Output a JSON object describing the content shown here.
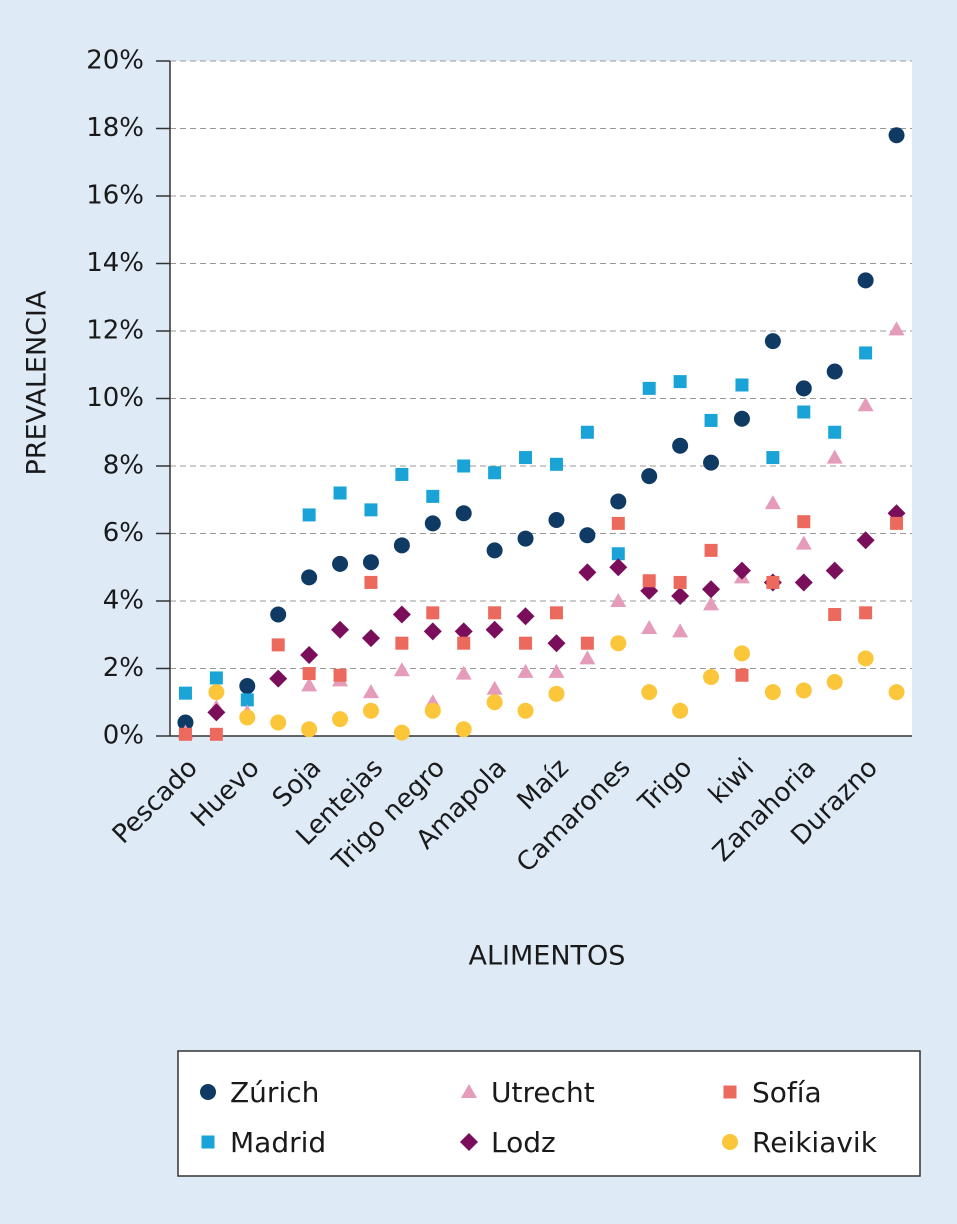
{
  "chart_data": {
    "type": "scatter",
    "x_label": "ALIMENTOS",
    "y_label": "PREVALENCIA",
    "categories": [
      "Pescado",
      null,
      "Huevo",
      null,
      "Soja",
      null,
      "Lentejas",
      null,
      "Trigo negro",
      null,
      "Amapola",
      null,
      "Maíz",
      null,
      "Camarones",
      null,
      "Trigo",
      null,
      "kiwi",
      null,
      "Zanahoria",
      null,
      "Durazno",
      null
    ],
    "ylim": [
      0,
      20
    ],
    "yticks": [
      {
        "value": 0,
        "label": "0%"
      },
      {
        "value": 2,
        "label": "2%"
      },
      {
        "value": 4,
        "label": "4%"
      },
      {
        "value": 6,
        "label": "6%"
      },
      {
        "value": 8,
        "label": "8%"
      },
      {
        "value": 10,
        "label": "10%"
      },
      {
        "value": 12,
        "label": "12%"
      },
      {
        "value": 14,
        "label": "14%"
      },
      {
        "value": 16,
        "label": "16%"
      },
      {
        "value": 18,
        "label": "18%"
      },
      {
        "value": 20,
        "label": "20%"
      }
    ],
    "grid": true,
    "series": [
      {
        "name": "Zúrich",
        "color": "#0f3a64",
        "marker": "circle",
        "values": [
          0.4,
          null,
          1.48,
          3.6,
          4.7,
          5.1,
          5.15,
          5.65,
          6.3,
          6.6,
          5.5,
          5.85,
          6.4,
          5.95,
          6.95,
          7.7,
          8.6,
          8.1,
          9.4,
          11.7,
          10.3,
          10.8,
          13.5,
          17.8
        ]
      },
      {
        "name": "Madrid",
        "color": "#19a3d6",
        "marker": "square",
        "values": [
          1.27,
          1.72,
          1.07,
          null,
          6.55,
          7.2,
          6.7,
          7.75,
          7.1,
          8.0,
          7.8,
          8.25,
          8.05,
          9.0,
          5.4,
          10.3,
          10.5,
          9.35,
          10.4,
          8.25,
          9.6,
          9.0,
          11.35,
          null
        ]
      },
      {
        "name": "Utrecht",
        "color": "#e59bba",
        "marker": "triangle",
        "values": [
          0.1,
          0.85,
          0.7,
          null,
          1.5,
          1.65,
          1.3,
          1.95,
          1.0,
          1.85,
          1.4,
          1.9,
          1.9,
          2.3,
          4.0,
          3.2,
          3.1,
          3.9,
          4.7,
          6.9,
          5.7,
          8.25,
          9.8,
          12.05
        ]
      },
      {
        "name": "Lodz",
        "color": "#7a0e5b",
        "marker": "diamond",
        "values": [
          null,
          0.7,
          null,
          1.7,
          2.4,
          3.15,
          2.9,
          3.6,
          3.1,
          3.1,
          3.15,
          3.55,
          2.75,
          4.85,
          5.0,
          4.3,
          4.15,
          4.35,
          4.9,
          4.55,
          4.55,
          4.9,
          5.8,
          6.6
        ]
      },
      {
        "name": "Sofía",
        "color": "#eb6a5d",
        "marker": "square",
        "values": [
          0.05,
          0.05,
          null,
          2.7,
          1.85,
          1.8,
          4.55,
          2.75,
          3.65,
          2.75,
          3.65,
          2.75,
          3.65,
          2.75,
          6.3,
          4.6,
          4.55,
          5.5,
          1.8,
          4.55,
          6.35,
          3.6,
          3.65,
          6.3
        ]
      },
      {
        "name": "Reikiavik",
        "color": "#fcc63a",
        "marker": "circle",
        "values": [
          null,
          1.3,
          0.55,
          0.4,
          0.2,
          0.5,
          0.75,
          0.1,
          0.75,
          0.2,
          1.0,
          0.75,
          1.25,
          null,
          2.75,
          1.3,
          0.75,
          1.75,
          2.45,
          1.3,
          1.35,
          1.6,
          2.3,
          1.3
        ]
      }
    ]
  }
}
